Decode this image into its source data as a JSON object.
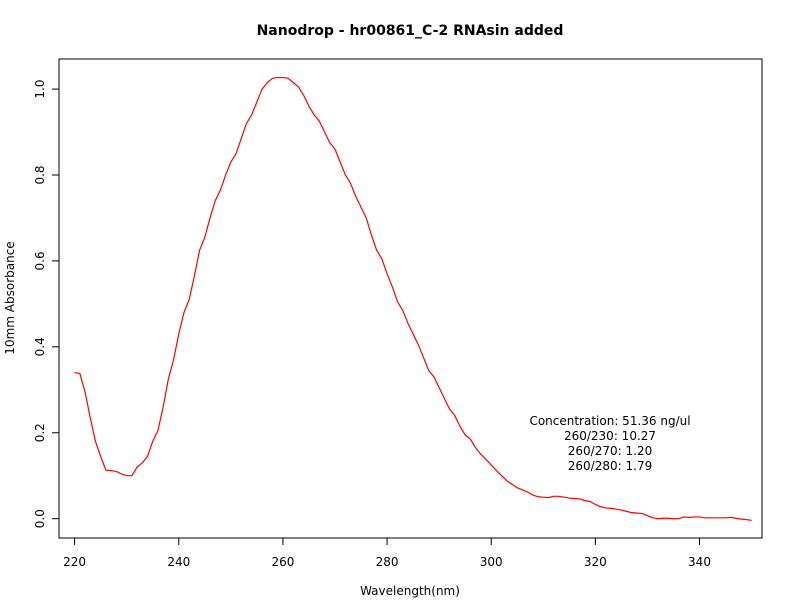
{
  "chart_data": {
    "type": "line",
    "title": "Nanodrop - hr00861_C-2 RNAsin added",
    "xlabel": "Wavelength(nm)",
    "ylabel": "10mm Absorbance",
    "xlim": [
      217,
      352
    ],
    "ylim": [
      -0.045,
      1.07
    ],
    "x_ticks": [
      220,
      240,
      260,
      280,
      300,
      320,
      340
    ],
    "y_ticks": [
      0.0,
      0.2,
      0.4,
      0.6,
      0.8,
      1.0
    ],
    "x_tick_labels": [
      "220",
      "240",
      "260",
      "280",
      "300",
      "320",
      "340"
    ],
    "y_tick_labels": [
      "0.0",
      "0.2",
      "0.4",
      "0.6",
      "0.8",
      "1.0"
    ],
    "grid": false,
    "series": [
      {
        "color": "#ff0000",
        "x": [
          220,
          221,
          222,
          223,
          224,
          225,
          226,
          227,
          228,
          229,
          230,
          231,
          232,
          233,
          234,
          235,
          236,
          237,
          238,
          239,
          240,
          241,
          242,
          243,
          244,
          245,
          246,
          247,
          248,
          249,
          250,
          251,
          252,
          253,
          254,
          255,
          256,
          257,
          258,
          259,
          260,
          261,
          262,
          263,
          264,
          265,
          266,
          267,
          268,
          269,
          270,
          271,
          272,
          273,
          274,
          275,
          276,
          277,
          278,
          279,
          280,
          281,
          282,
          283,
          284,
          285,
          286,
          287,
          288,
          289,
          290,
          291,
          292,
          293,
          294,
          295,
          296,
          297,
          298,
          299,
          300,
          301,
          302,
          303,
          304,
          305,
          306,
          307,
          308,
          309,
          310,
          311,
          312,
          313,
          314,
          315,
          316,
          317,
          318,
          319,
          320,
          321,
          322,
          323,
          324,
          325,
          326,
          327,
          328,
          329,
          330,
          331,
          332,
          333,
          334,
          335,
          336,
          337,
          338,
          339,
          340,
          341,
          342,
          343,
          344,
          345,
          346,
          347,
          348,
          349,
          350
        ],
        "y": [
          0.34,
          0.338,
          0.295,
          0.235,
          0.18,
          0.145,
          0.113,
          0.112,
          0.11,
          0.104,
          0.1,
          0.1,
          0.12,
          0.13,
          0.145,
          0.18,
          0.205,
          0.26,
          0.325,
          0.37,
          0.43,
          0.48,
          0.51,
          0.565,
          0.625,
          0.655,
          0.7,
          0.74,
          0.765,
          0.8,
          0.83,
          0.85,
          0.885,
          0.92,
          0.94,
          0.97,
          1.0,
          1.015,
          1.025,
          1.027,
          1.027,
          1.025,
          1.015,
          1.005,
          0.985,
          0.96,
          0.94,
          0.925,
          0.9,
          0.875,
          0.86,
          0.83,
          0.8,
          0.78,
          0.75,
          0.725,
          0.7,
          0.66,
          0.625,
          0.605,
          0.57,
          0.54,
          0.505,
          0.485,
          0.455,
          0.43,
          0.405,
          0.375,
          0.345,
          0.33,
          0.305,
          0.28,
          0.255,
          0.24,
          0.215,
          0.195,
          0.185,
          0.165,
          0.15,
          0.138,
          0.125,
          0.112,
          0.1,
          0.088,
          0.08,
          0.072,
          0.067,
          0.062,
          0.055,
          0.051,
          0.05,
          0.049,
          0.052,
          0.052,
          0.05,
          0.048,
          0.047,
          0.046,
          0.042,
          0.04,
          0.033,
          0.028,
          0.025,
          0.024,
          0.022,
          0.02,
          0.017,
          0.014,
          0.013,
          0.012,
          0.007,
          0.002,
          0.0,
          0.001,
          0.001,
          0.0,
          0.0,
          0.004,
          0.003,
          0.004,
          0.004,
          0.002,
          0.002,
          0.002,
          0.002,
          0.002,
          0.003,
          0.001,
          -0.001,
          -0.002,
          -0.004
        ]
      }
    ],
    "annotations": [
      "Concentration: 51.36 ng/ul",
      "260/230: 10.27",
      "260/270: 1.20",
      "260/280: 1.79"
    ]
  }
}
